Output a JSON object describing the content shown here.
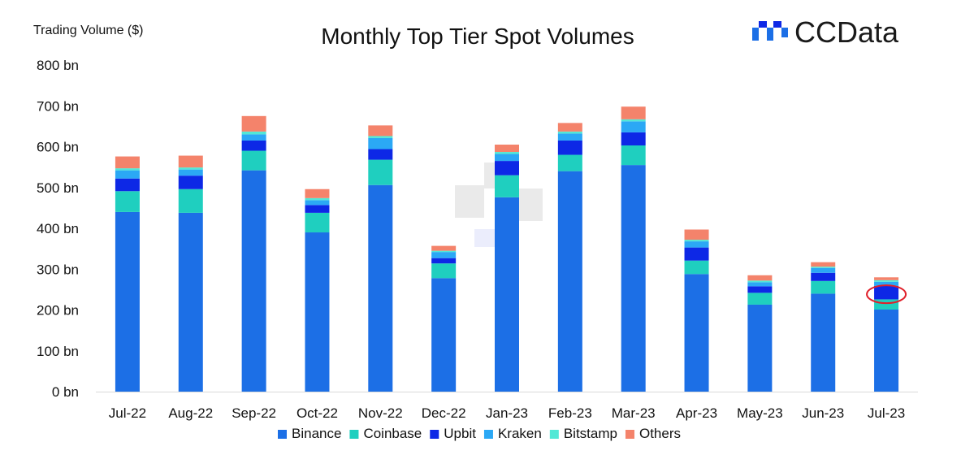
{
  "chart_data": {
    "type": "bar",
    "stacked": true,
    "title": "Monthly Top Tier Spot Volumes",
    "ylabel": "Trading Volume ($)",
    "ylim": [
      0,
      800
    ],
    "yticks": [
      0,
      100,
      200,
      300,
      400,
      500,
      600,
      700,
      800
    ],
    "ytick_labels": [
      "0 bn",
      "100 bn",
      "200 bn",
      "300 bn",
      "400 bn",
      "500 bn",
      "600 bn",
      "700 bn",
      "800 bn"
    ],
    "categories": [
      "Jul-22",
      "Aug-22",
      "Sep-22",
      "Oct-22",
      "Nov-22",
      "Dec-22",
      "Jan-23",
      "Feb-23",
      "Mar-23",
      "Apr-23",
      "May-23",
      "Jun-23",
      "Jul-23"
    ],
    "series": [
      {
        "name": "Binance",
        "color": "#1c6fe6",
        "values": [
          440,
          438,
          542,
          390,
          506,
          278,
          476,
          540,
          555,
          288,
          213,
          240,
          201
        ]
      },
      {
        "name": "Coinbase",
        "color": "#1fcfbf",
        "values": [
          51,
          58,
          48,
          48,
          62,
          36,
          54,
          40,
          48,
          33,
          29,
          31,
          25
        ]
      },
      {
        "name": "Upbit",
        "color": "#0d28e6",
        "values": [
          31,
          33,
          25,
          19,
          26,
          13,
          35,
          35,
          32,
          32,
          16,
          20,
          33
        ]
      },
      {
        "name": "Kraken",
        "color": "#2ba8f5",
        "values": [
          20,
          15,
          15,
          12,
          27,
          15,
          17,
          17,
          27,
          15,
          10,
          12,
          10
        ]
      },
      {
        "name": "Bitstamp",
        "color": "#52e8d6",
        "values": [
          5,
          5,
          7,
          5,
          5,
          3,
          5,
          5,
          5,
          4,
          4,
          3,
          4
        ]
      },
      {
        "name": "Others",
        "color": "#f4836b",
        "values": [
          29,
          29,
          38,
          22,
          26,
          12,
          18,
          21,
          31,
          25,
          13,
          11,
          7
        ]
      }
    ],
    "annotation": {
      "type": "ellipse",
      "category": "Jul-23",
      "series": "Upbit",
      "color": "#e0202a"
    },
    "legend_position": "bottom",
    "grid": false
  },
  "brand": {
    "name": "CCData",
    "colors": [
      "#1c6fe6",
      "#0d28e6"
    ]
  }
}
